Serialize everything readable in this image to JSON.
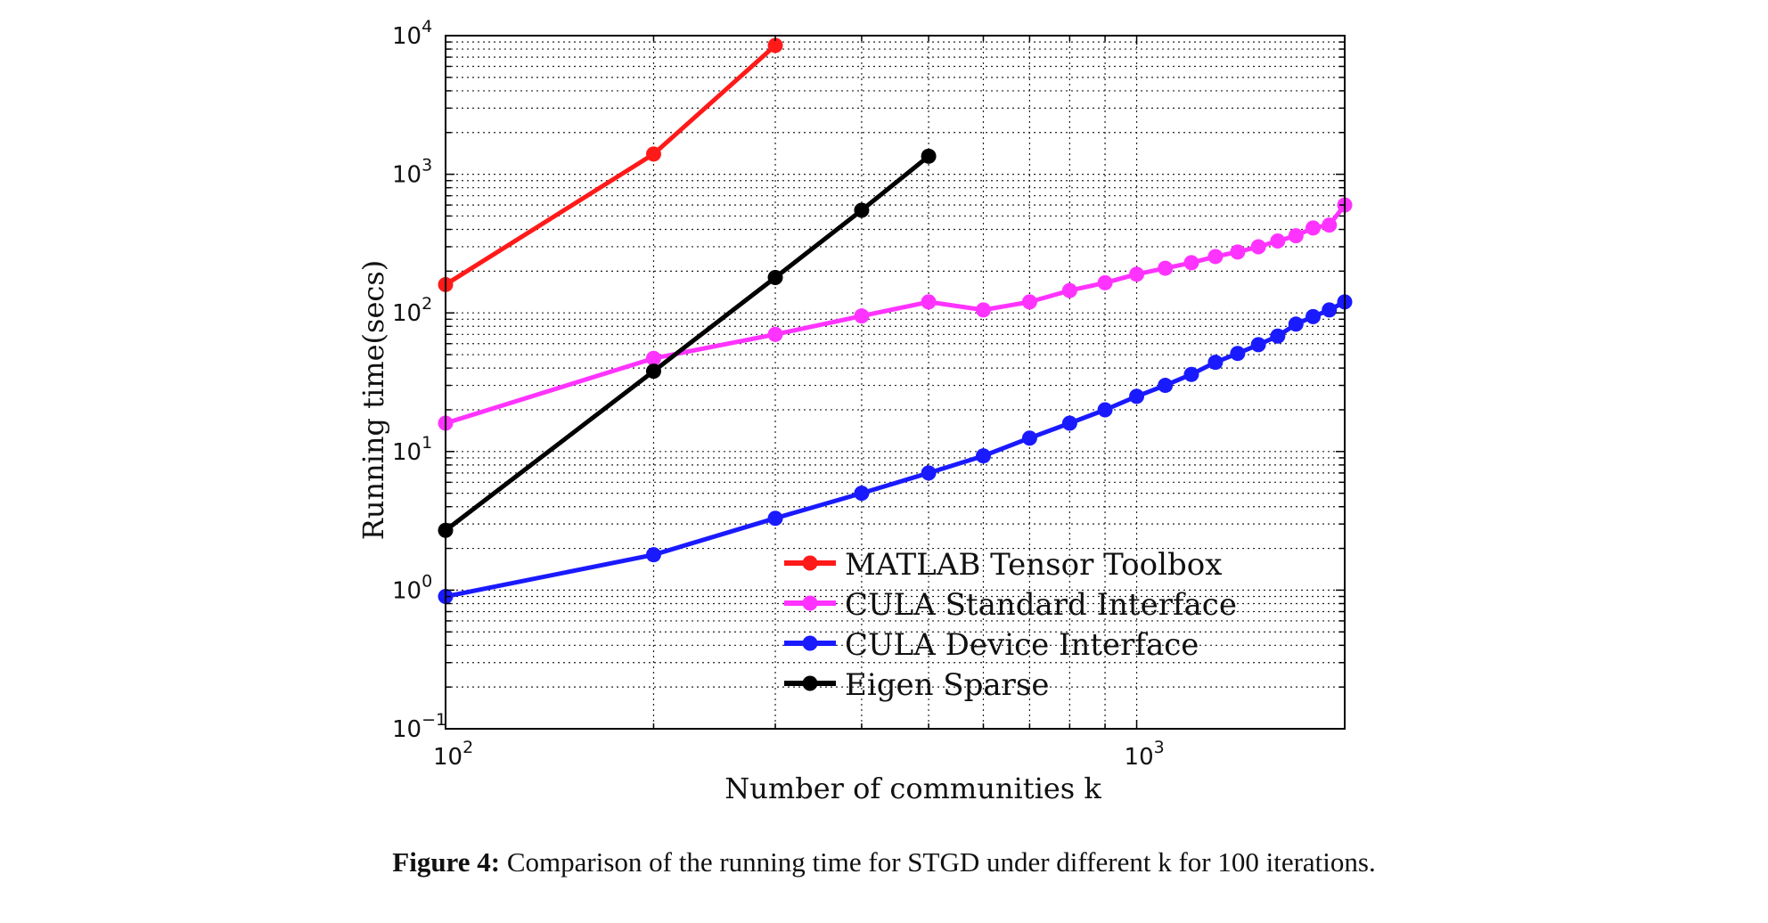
{
  "chart_data": {
    "type": "line",
    "xlabel": "Number of communities k",
    "ylabel": "Running time(secs)",
    "x_scale": "log",
    "y_scale": "log",
    "xlim": [
      100,
      2000
    ],
    "ylim": [
      0.1,
      10000
    ],
    "x_ticks": [
      {
        "value": 100,
        "base": "10",
        "exp": "2"
      },
      {
        "value": 1000,
        "base": "10",
        "exp": "3"
      }
    ],
    "y_ticks": [
      {
        "value": 0.1,
        "base": "10",
        "exp": "−1"
      },
      {
        "value": 1,
        "base": "10",
        "exp": "0"
      },
      {
        "value": 10,
        "base": "10",
        "exp": "1"
      },
      {
        "value": 100,
        "base": "10",
        "exp": "2"
      },
      {
        "value": 1000,
        "base": "10",
        "exp": "3"
      },
      {
        "value": 10000,
        "base": "10",
        "exp": "4"
      }
    ],
    "grid": true,
    "legend_position": "bottom-right",
    "series": [
      {
        "name": "MATLAB Tensor Toolbox",
        "color": "#ff1a1a",
        "x": [
          100,
          200,
          300
        ],
        "y": [
          160,
          1400,
          8500
        ]
      },
      {
        "name": "CULA Standard Interface",
        "color": "#ff33ff",
        "x": [
          100,
          200,
          300,
          400,
          500,
          600,
          700,
          800,
          900,
          1000,
          1100,
          1200,
          1300,
          1400,
          1500,
          1600,
          1700,
          1800,
          1900,
          2000
        ],
        "y": [
          16,
          47,
          70,
          95,
          120,
          105,
          120,
          145,
          165,
          190,
          210,
          230,
          255,
          275,
          300,
          330,
          360,
          410,
          430,
          600
        ]
      },
      {
        "name": "CULA Device Interface",
        "color": "#1a1aff",
        "x": [
          100,
          200,
          300,
          400,
          500,
          600,
          700,
          800,
          900,
          1000,
          1100,
          1200,
          1300,
          1400,
          1500,
          1600,
          1700,
          1800,
          1900,
          2000
        ],
        "y": [
          0.9,
          1.8,
          3.3,
          5,
          7,
          9.3,
          12.5,
          16,
          20,
          25,
          30,
          36,
          44,
          51,
          59,
          68,
          83,
          94,
          105,
          120
        ]
      },
      {
        "name": "Eigen Sparse",
        "color": "#000000",
        "x": [
          100,
          200,
          300,
          400,
          500
        ],
        "y": [
          2.7,
          38,
          180,
          550,
          1350
        ]
      }
    ]
  },
  "caption": {
    "label": "Figure 4:",
    "text": "Comparison of the running time for STGD under different k for 100 iterations."
  }
}
